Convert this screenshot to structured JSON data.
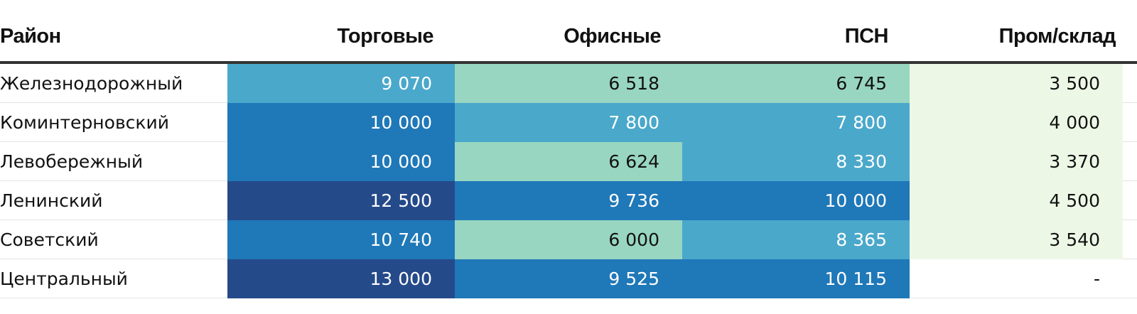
{
  "colors": {
    "scale": [
      "#edf7e6",
      "#98d6c1",
      "#4aa8cb",
      "#1f78b8",
      "#254a8a"
    ],
    "text_dark": "#111111",
    "text_light": "#ffffff",
    "header_rule": "#333333",
    "row_rule": "#e3e3e3"
  },
  "chart_data": {
    "type": "table",
    "columns": [
      "Район",
      "Торговые",
      "Офисные",
      "ПСН",
      "Пром/склад"
    ],
    "rows": [
      {
        "district": "Железнодорожный",
        "values": [
          "9 070",
          "6 518",
          "6 745",
          "3 500"
        ],
        "levels": [
          2,
          1,
          1,
          0
        ]
      },
      {
        "district": "Коминтерновский",
        "values": [
          "10 000",
          "7 800",
          "7 800",
          "4 000"
        ],
        "levels": [
          3,
          2,
          2,
          0
        ]
      },
      {
        "district": "Левобережный",
        "values": [
          "10 000",
          "6 624",
          "8 330",
          "3 370"
        ],
        "levels": [
          3,
          1,
          2,
          0
        ]
      },
      {
        "district": "Ленинский",
        "values": [
          "12 500",
          "9 736",
          "10 000",
          "4 500"
        ],
        "levels": [
          4,
          3,
          3,
          0
        ]
      },
      {
        "district": "Советский",
        "values": [
          "10 740",
          "6 000",
          "8 365",
          "3 540"
        ],
        "levels": [
          3,
          1,
          2,
          0
        ]
      },
      {
        "district": "Центральный",
        "values": [
          "13 000",
          "9 525",
          "10 115",
          "-"
        ],
        "levels": [
          4,
          3,
          3,
          -1
        ]
      }
    ]
  }
}
